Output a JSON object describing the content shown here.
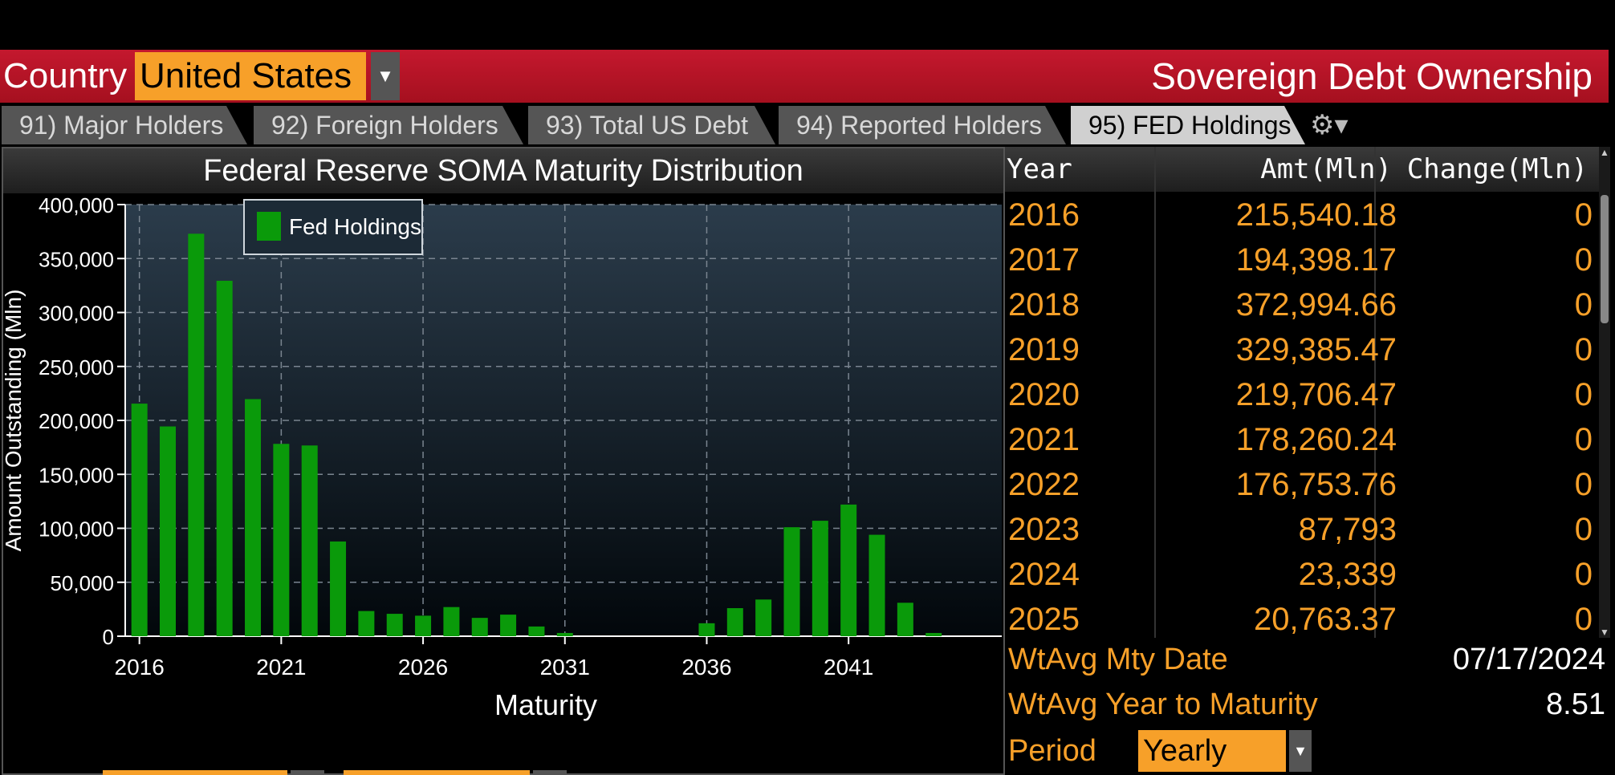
{
  "header": {
    "country_label": "Country",
    "country_value": "United States",
    "dropdown_icon": "▼",
    "title": "Sovereign Debt Ownership"
  },
  "tabs": [
    {
      "label": "91) Major Holders"
    },
    {
      "label": "92) Foreign Holders"
    },
    {
      "label": "93) Total US Debt"
    },
    {
      "label": "94) Reported Holders"
    },
    {
      "label": "95) FED Holdings"
    }
  ],
  "tab_active_index": 4,
  "gear_icon": "⚙▾",
  "chart_title": "Federal Reserve SOMA Maturity Distribution",
  "colors": {
    "accent": "#f7a029",
    "header_red": "#c4182e",
    "bar_green": "#0a9a0a"
  },
  "chart_data": {
    "type": "bar",
    "title": "Federal Reserve SOMA Maturity Distribution",
    "xlabel": "Maturity",
    "ylabel": "Amount Outstanding (Mln)",
    "ylim": [
      0,
      400000
    ],
    "yticks": [
      "0",
      "50,000",
      "100,000",
      "150,000",
      "200,000",
      "250,000",
      "300,000",
      "350,000",
      "400,000"
    ],
    "xticks": [
      "2016",
      "2021",
      "2026",
      "2031",
      "2036",
      "2041"
    ],
    "legend": "top-left",
    "grid": true,
    "series": [
      {
        "name": "Fed Holdings",
        "x": [
          2016,
          2017,
          2018,
          2019,
          2020,
          2021,
          2022,
          2023,
          2024,
          2025,
          2026,
          2027,
          2028,
          2029,
          2030,
          2031,
          2032,
          2033,
          2034,
          2035,
          2036,
          2037,
          2038,
          2039,
          2040,
          2041,
          2042,
          2043,
          2044
        ],
        "values": [
          215540.18,
          194398.17,
          372994.66,
          329385.47,
          219706.47,
          178260.24,
          176753.76,
          87793,
          23339,
          20763.37,
          19000,
          27000,
          17000,
          20000,
          9000,
          3000,
          0,
          0,
          0,
          0,
          12000,
          26000,
          34000,
          101000,
          107000,
          122000,
          94000,
          31000,
          3000
        ]
      }
    ]
  },
  "table": {
    "headers": {
      "year": "Year",
      "amt": "Amt(Mln)",
      "change": "Change(Mln)"
    },
    "rows": [
      {
        "year": "2016",
        "amt": "215,540.18",
        "change": "0"
      },
      {
        "year": "2017",
        "amt": "194,398.17",
        "change": "0"
      },
      {
        "year": "2018",
        "amt": "372,994.66",
        "change": "0"
      },
      {
        "year": "2019",
        "amt": "329,385.47",
        "change": "0"
      },
      {
        "year": "2020",
        "amt": "219,706.47",
        "change": "0"
      },
      {
        "year": "2021",
        "amt": "178,260.24",
        "change": "0"
      },
      {
        "year": "2022",
        "amt": "176,753.76",
        "change": "0"
      },
      {
        "year": "2023",
        "amt": "87,793",
        "change": "0"
      },
      {
        "year": "2024",
        "amt": "23,339",
        "change": "0"
      },
      {
        "year": "2025",
        "amt": "20,763.37",
        "change": "0"
      }
    ]
  },
  "summary": {
    "wtavg_mty_date_label": "WtAvg Mty Date",
    "wtavg_mty_date": "07/17/2024",
    "wtavg_year_label": "WtAvg Year to Maturity",
    "wtavg_year": "8.51",
    "period_label": "Period",
    "period_value": "Yearly"
  }
}
